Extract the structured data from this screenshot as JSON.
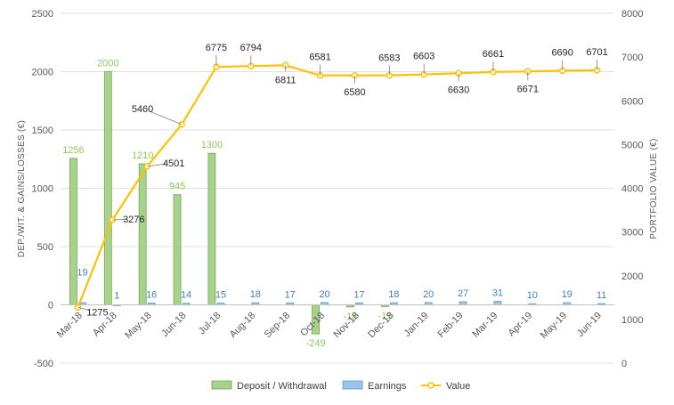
{
  "chart_data": {
    "type": "bar",
    "title": "",
    "categories": [
      "Mar-18",
      "Apr-18",
      "May-18",
      "Jun-18",
      "Jul-18",
      "Aug-18",
      "Sep-18",
      "Oct-18",
      "Nov-18",
      "Dec-18",
      "Jan-19",
      "Feb-19",
      "Mar-19",
      "Apr-19",
      "May-19",
      "Jun-19"
    ],
    "ylabel_left": "DEP./WIT. & GAINS/LOSSES (€)",
    "ylabel_right": "PORTFOLIO VALUE (€)",
    "ylim_left": [
      -500,
      2500
    ],
    "yticks_left": [
      "-500",
      "0",
      "500",
      "1000",
      "1500",
      "2000",
      "2500"
    ],
    "ylim_right": [
      0,
      8000
    ],
    "yticks_right": [
      "0",
      "1000",
      "2000",
      "3000",
      "4000",
      "5000",
      "6000",
      "7000",
      "8000"
    ],
    "grid": true,
    "legend_position": "bottom",
    "series": [
      {
        "name": "Deposit / Withdrawal",
        "kind": "bar",
        "axis": "left",
        "color": "#a9d18e",
        "border": "#70ad47",
        "values": [
          1256,
          2000,
          1210,
          945,
          1300,
          null,
          null,
          -249,
          -18,
          -15,
          null,
          null,
          null,
          null,
          null,
          null
        ],
        "labels": [
          "1256",
          "2000",
          "1210",
          "945",
          "1300",
          "",
          "",
          "-249",
          "-18",
          "-15",
          "",
          "",
          "",
          "",
          "",
          ""
        ]
      },
      {
        "name": "Earnings",
        "kind": "bar",
        "axis": "left",
        "color": "#9dc3e6",
        "border": "#5b9bd5",
        "values": [
          19,
          1,
          16,
          14,
          15,
          18,
          17,
          20,
          17,
          18,
          20,
          27,
          31,
          10,
          19,
          11
        ],
        "labels": [
          "19",
          "1",
          "16",
          "14",
          "15",
          "18",
          "17",
          "20",
          "17",
          "18",
          "20",
          "27",
          "31",
          "10",
          "19",
          "11"
        ]
      },
      {
        "name": "Value",
        "kind": "line",
        "axis": "right",
        "color": "#ffc000",
        "values": [
          1275,
          3276,
          4501,
          5460,
          6775,
          6794,
          6811,
          6581,
          6580,
          6583,
          6603,
          6630,
          6661,
          6671,
          6690,
          6701
        ],
        "labels": [
          "1275",
          "3276",
          "4501",
          "5460",
          "6775",
          "6794",
          "6811",
          "6581",
          "6580",
          "6583",
          "6603",
          "6630",
          "6661",
          "6671",
          "6690",
          "6701"
        ]
      }
    ]
  }
}
